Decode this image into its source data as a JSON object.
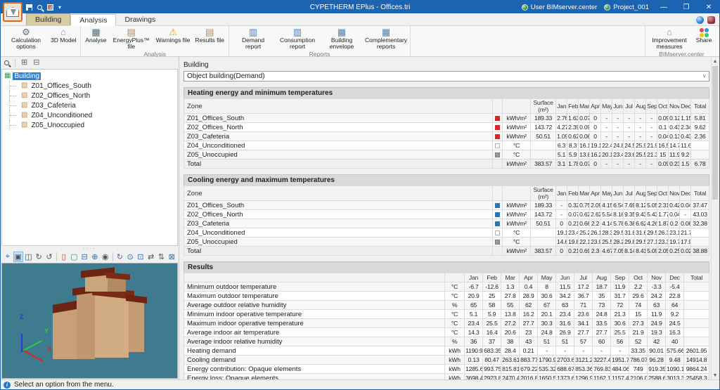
{
  "window": {
    "title": "CYPETHERM EPlus - Offices.tri",
    "user_account": "User BIMserver.center",
    "project_name": "Project_001",
    "minimize": "—",
    "maximize": "❐",
    "close": "✕"
  },
  "tabs": {
    "building": "Building",
    "analysis": "Analysis",
    "drawings": "Drawings"
  },
  "ribbon": {
    "groups": [
      {
        "label": "",
        "buttons": [
          {
            "label": "Calculation options",
            "icon": "gear-icon"
          },
          {
            "label": "3D Model",
            "icon": "model-3d-icon"
          }
        ]
      },
      {
        "label": "Analysis",
        "buttons": [
          {
            "label": "Analyse",
            "icon": "calculator-icon"
          },
          {
            "label": "EnergyPlus™ file",
            "icon": "energyplus-file-icon"
          },
          {
            "label": "Warnings file",
            "icon": "warnings-file-icon"
          },
          {
            "label": "Results file",
            "icon": "results-file-icon"
          }
        ]
      },
      {
        "label": "Reports",
        "buttons": [
          {
            "label": "Demand report",
            "icon": "demand-report-icon"
          },
          {
            "label": "Consumption report",
            "icon": "consumption-report-icon"
          },
          {
            "label": "Building envelope",
            "icon": "building-envelope-icon"
          },
          {
            "label": "Complementary reports",
            "icon": "complementary-reports-icon"
          }
        ]
      },
      {
        "label": "BIMserver.center",
        "right": true,
        "buttons": [
          {
            "label": "Improvement measures",
            "icon": "improvement-measures-icon"
          },
          {
            "label": "Share",
            "icon": "share-icon"
          }
        ]
      }
    ]
  },
  "tree": {
    "items": [
      {
        "label": "Building",
        "icon": "building-icon",
        "selected": true,
        "level": 0
      },
      {
        "label": "Z01_Offices_South",
        "icon": "zone-icon",
        "level": 1
      },
      {
        "label": "Z02_Offices_North",
        "icon": "zone-icon",
        "level": 1
      },
      {
        "label": "Z03_Cafeteria",
        "icon": "zone-icon",
        "level": 1
      },
      {
        "label": "Z04_Unconditioned",
        "icon": "zone-icon",
        "level": 1
      },
      {
        "label": "Z05_Unoccupied",
        "icon": "zone-icon",
        "level": 1
      }
    ]
  },
  "viewport": {
    "toolbar": [
      "view-orientation-icon",
      "view-3d-icon",
      "view-rotate-icon",
      "view-orbit-icon",
      "view-turntable-icon",
      "doors-visibility-icon",
      "windows-visibility-icon",
      "shadows-icon",
      "render-icon",
      "visibility-icon",
      "spin-icon",
      "zoom-extents-icon",
      "zoom-window-icon",
      "pan-icon",
      "move-icon",
      "fullscreen-icon"
    ],
    "active_tool_index": 1,
    "separators_after": [
      4,
      9
    ],
    "axes": {
      "x": "X",
      "y": "Y",
      "z": "Z"
    },
    "background_color": "#3f7b8e"
  },
  "main": {
    "panel_label": "Building",
    "dropdown_value": "Object building(Demand)",
    "months": [
      "Jan",
      "Feb",
      "Mar",
      "Apr",
      "May",
      "Jun",
      "Jul",
      "Aug",
      "Sep",
      "Oct",
      "Nov",
      "Dec"
    ],
    "total_label": "Total",
    "zone_header": "Zone",
    "surface_header_line1": "Surface",
    "surface_header_line2": "(m²)",
    "sections": {
      "heating": {
        "title": "Heating energy and minimum temperatures",
        "rows": [
          {
            "zone": "Z01_Offices_South",
            "marker": "heating",
            "unit": "kWh/m²",
            "surface": "189.33",
            "values": [
              "2.76",
              "1.63",
              "0.07",
              "0",
              "-",
              "-",
              "-",
              "-",
              "-",
              "0.09",
              "0.12",
              "1.15"
            ],
            "total": "5.81"
          },
          {
            "zone": "Z02_Offices_North",
            "marker": "heating",
            "unit": "kWh/m²",
            "surface": "143.72",
            "values": [
              "4.27",
              "2.39",
              "0.09",
              "0",
              "-",
              "-",
              "-",
              "-",
              "-",
              "0.1",
              "0.43",
              "2.34"
            ],
            "total": "9.62"
          },
          {
            "zone": "Z03_Cafeteria",
            "marker": "heating",
            "unit": "kWh/m²",
            "surface": "50.51",
            "values": [
              "1.09",
              "0.62",
              "0.06",
              "0",
              "-",
              "-",
              "-",
              "-",
              "-",
              "0.04",
              "0.13",
              "0.43"
            ],
            "total": "2.36"
          },
          {
            "zone": "Z04_Unconditioned",
            "marker": "outline",
            "unit": "°C",
            "surface": "",
            "values": [
              "6.3",
              "8.3",
              "16.1",
              "19.1",
              "22.4",
              "24.8",
              "24.5",
              "25.9",
              "21.9",
              "16.5",
              "14.7",
              "11.6"
            ],
            "total": ""
          },
          {
            "zone": "Z05_Unoccupied",
            "marker": "unoccupied",
            "unit": "°C",
            "surface": "",
            "values": [
              "5.1",
              "5.9",
              "13.8",
              "16.2",
              "20.1",
              "23.4",
              "23.6",
              "25.5",
              "21.3",
              "15",
              "11.9",
              "9.2"
            ],
            "total": ""
          },
          {
            "zone": "Total",
            "marker": "",
            "unit": "kWh/m²",
            "surface": "383.57",
            "values": [
              "3.1",
              "1.78",
              "0.07",
              "0",
              "-",
              "-",
              "-",
              "-",
              "-",
              "0.09",
              "0.23",
              "1.5"
            ],
            "total": "6.78",
            "is_total": true
          }
        ]
      },
      "cooling": {
        "title": "Cooling energy and maximum temperatures",
        "rows": [
          {
            "zone": "Z01_Offices_South",
            "marker": "cooling",
            "unit": "kWh/m²",
            "surface": "189.33",
            "values": [
              "-",
              "0.32",
              "0.75",
              "2.09",
              "4.15",
              "6.54",
              "7.69",
              "8.12",
              "5.05",
              "2.31",
              "0.42",
              "0.04"
            ],
            "total": "37.47"
          },
          {
            "zone": "Z02_Offices_North",
            "marker": "cooling",
            "unit": "kWh/m²",
            "surface": "143.72",
            "values": [
              "-",
              "0.07",
              "0.62",
              "2.62",
              "5.54",
              "8.16",
              "9.35",
              "9.43",
              "5.43",
              "1.77",
              "0.04",
              "-"
            ],
            "total": "43.03"
          },
          {
            "zone": "Z03_Cafeteria",
            "marker": "cooling",
            "unit": "kWh/m²",
            "surface": "50.51",
            "values": [
              "0",
              "0.21",
              "0.66",
              "2.2",
              "4.14",
              "5.78",
              "6.38",
              "6.62",
              "4.26",
              "1.87",
              "0.2",
              "0.06"
            ],
            "total": "32.38"
          },
          {
            "zone": "Z04_Unconditioned",
            "marker": "outline",
            "unit": "°C",
            "surface": "",
            "values": [
              "19.1",
              "23.4",
              "25.2",
              "26.1",
              "28.3",
              "29.5",
              "31.8",
              "31.6",
              "29.5",
              "26.3",
              "23.1",
              "21.7"
            ],
            "total": ""
          },
          {
            "zone": "Z05_Unoccupied",
            "marker": "unoccupied",
            "unit": "°C",
            "surface": "",
            "values": [
              "14.6",
              "19.8",
              "22.1",
              "23.9",
              "25.5",
              "28.2",
              "29.8",
              "29.5",
              "27.1",
              "23.3",
              "19.7",
              "17.9"
            ],
            "total": ""
          },
          {
            "zone": "Total",
            "marker": "",
            "unit": "kWh/m²",
            "surface": "383.57",
            "values": [
              "0",
              "0.21",
              "0.69",
              "2.3",
              "4.67",
              "7.05",
              "8.14",
              "8.41",
              "5.09",
              "2.05",
              "0.25",
              "0.02"
            ],
            "total": "38.88",
            "is_total": true
          }
        ]
      },
      "results": {
        "title": "Results",
        "rows": [
          {
            "label": "Minimum outdoor temperature",
            "unit": "°C",
            "values": [
              "-6.7",
              "-12.6",
              "1.3",
              "0.4",
              "8",
              "11.5",
              "17.2",
              "18.7",
              "11.9",
              "2.2",
              "-3.3",
              "-5.4"
            ],
            "total": ""
          },
          {
            "label": "Maximum outdoor temperature",
            "unit": "°C",
            "values": [
              "20.9",
              "25",
              "27.8",
              "28.9",
              "30.6",
              "34.2",
              "36.7",
              "35",
              "31.7",
              "29.6",
              "24.2",
              "22.8"
            ],
            "total": ""
          },
          {
            "label": "Average outdoor relative humidity",
            "unit": "%",
            "values": [
              "65",
              "58",
              "55",
              "62",
              "67",
              "63",
              "71",
              "73",
              "72",
              "74",
              "63",
              "64"
            ],
            "total": ""
          },
          {
            "label": "Minimum indoor operative temperature",
            "unit": "°C",
            "values": [
              "5.1",
              "5.9",
              "13.8",
              "16.2",
              "20.1",
              "23.4",
              "23.6",
              "24.8",
              "21.3",
              "15",
              "11.9",
              "9.2"
            ],
            "total": ""
          },
          {
            "label": "Maximum indoor operative temperature",
            "unit": "°C",
            "values": [
              "23.4",
              "25.5",
              "27.2",
              "27.7",
              "30.3",
              "31.6",
              "34.1",
              "33.5",
              "30.6",
              "27.3",
              "24.9",
              "24.5"
            ],
            "total": ""
          },
          {
            "label": "Average indoor air temperature",
            "unit": "°C",
            "values": [
              "14.3",
              "16.4",
              "20.6",
              "23",
              "24.8",
              "26.9",
              "27.7",
              "27.7",
              "25.5",
              "21.9",
              "19.3",
              "16.3"
            ],
            "total": ""
          },
          {
            "label": "Average indoor relative humidity",
            "unit": "%",
            "values": [
              "36",
              "37",
              "38",
              "43",
              "51",
              "51",
              "57",
              "60",
              "56",
              "52",
              "42",
              "40"
            ],
            "total": ""
          },
          {
            "label": "Heating demand",
            "unit": "kWh",
            "values": [
              "1190.97",
              "683.35",
              "28.4",
              "0.21",
              "-",
              "-",
              "-",
              "-",
              "-",
              "33.35",
              "90.01",
              "575.66"
            ],
            "total": "2601.95"
          },
          {
            "label": "Cooling demand",
            "unit": "kWh",
            "values": [
              "0.13",
              "80.47",
              "263.61",
              "883.77",
              "1790.94",
              "2703.66",
              "3121.27",
              "3227.46",
              "1951.72",
              "786.07",
              "96.28",
              "9.48"
            ],
            "total": "14914.8"
          },
          {
            "label": "Energy contribution: Opaque elements",
            "unit": "kWh",
            "values": [
              "1285.69",
              "993.75",
              "815.81",
              "679.22",
              "535.32",
              "688.67",
              "853.36",
              "769.83",
              "484.06",
              "749",
              "919.35",
              "1090.17"
            ],
            "total": "9864.24"
          },
          {
            "label": "Energy loss: Opaque elements",
            "unit": "kWh",
            "values": [
              "3698.43",
              "2923.8",
              "2470.48",
              "2016.88",
              "1650.53",
              "1373.66",
              "1296.92",
              "1162.1",
              "1157.4",
              "2106.07",
              "2588.61",
              "3013.37"
            ],
            "total": "25458.3"
          }
        ]
      }
    }
  },
  "statusbar": {
    "text": "Select an option from the menu."
  },
  "colors": {
    "titlebar": "#1c63b1",
    "heating_marker": "#cf2a27",
    "cooling_marker": "#2e74b5",
    "unoccupied_marker": "#9a9a9a",
    "viewport_background": "#3f7b8e",
    "selection": "#2f80d6"
  }
}
